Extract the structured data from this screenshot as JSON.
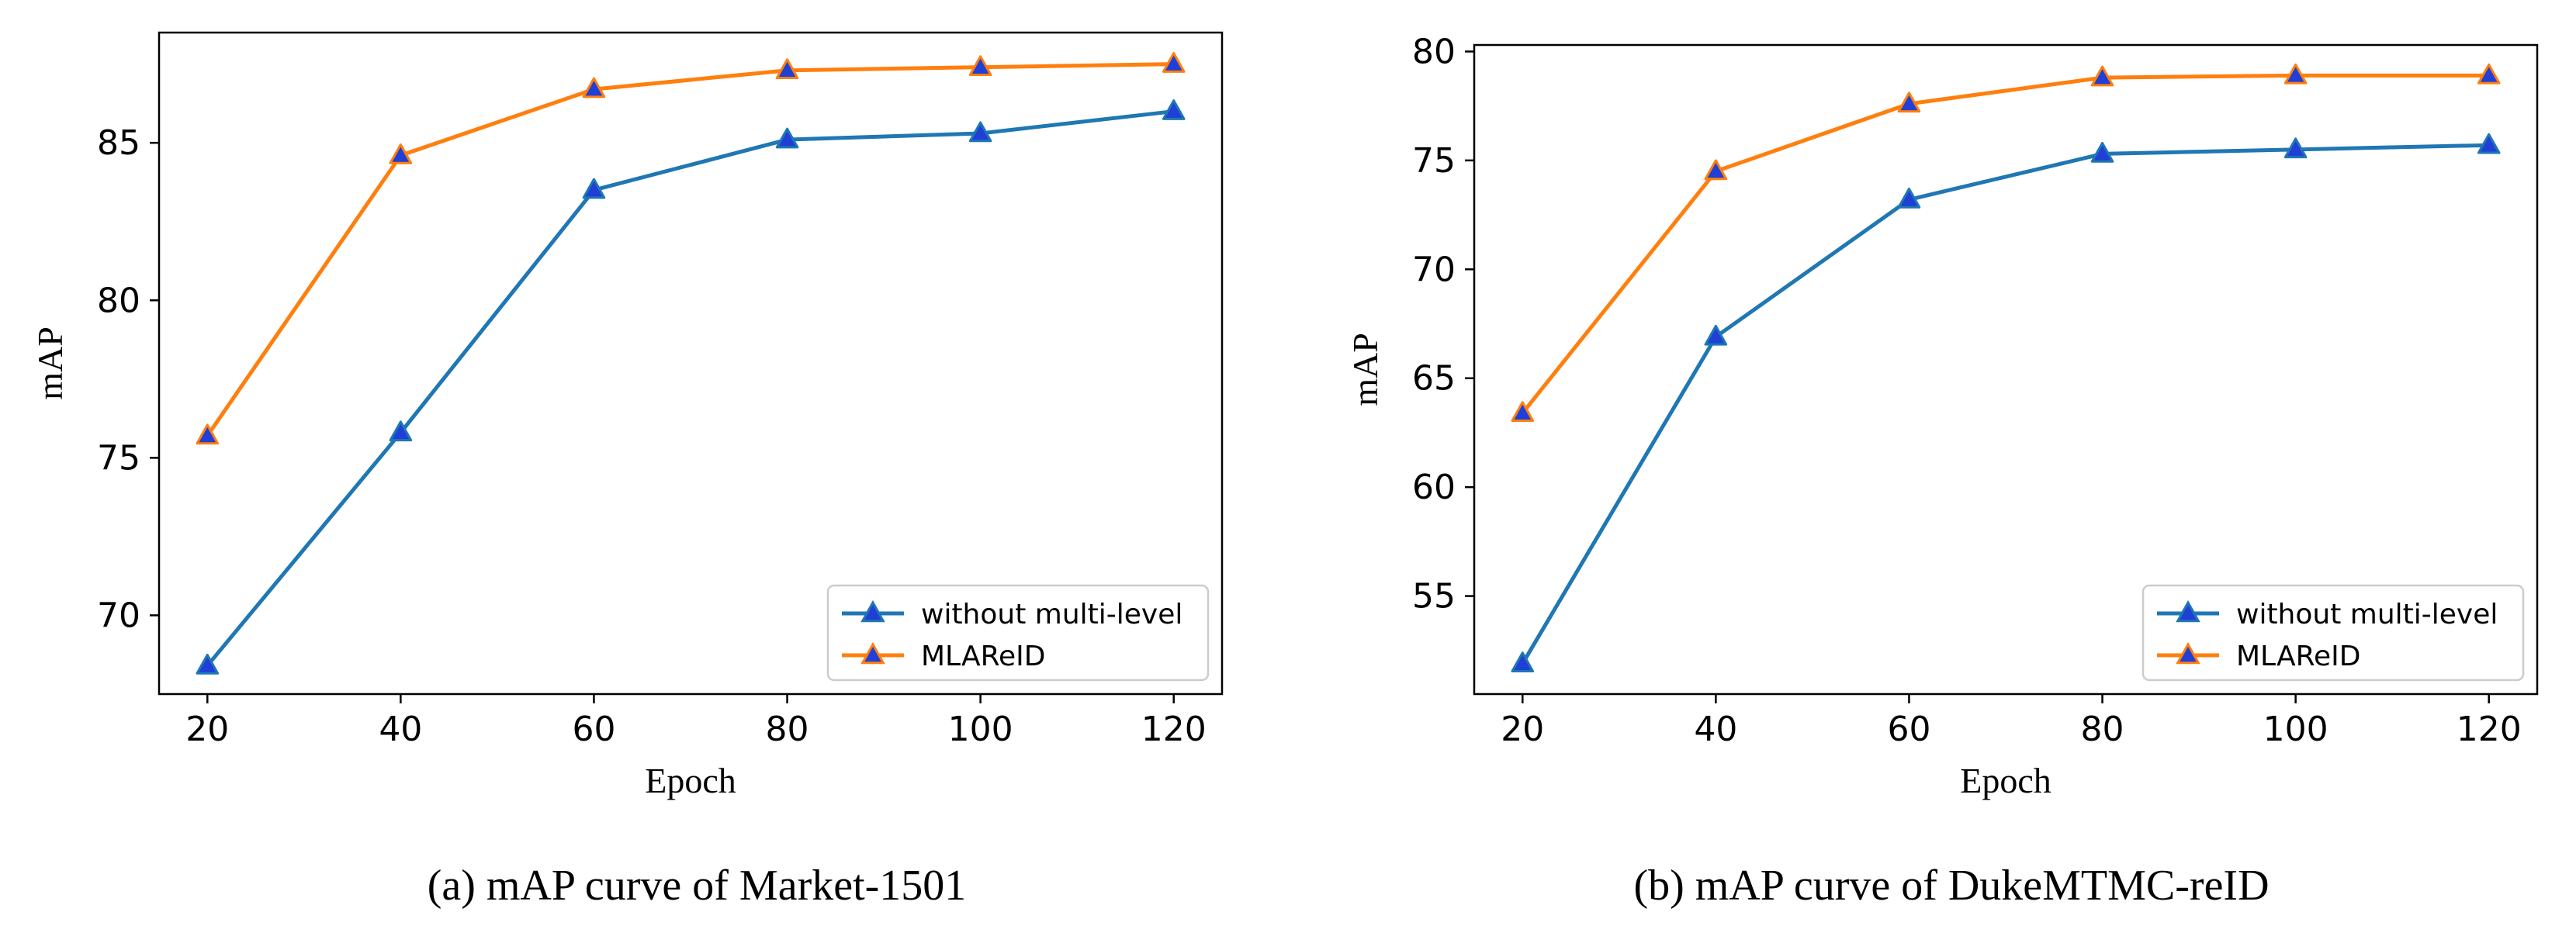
{
  "chart_data": [
    {
      "type": "line",
      "xlabel": "Epoch",
      "ylabel": "mAP",
      "caption": "(a) mAP curve of Market-1501",
      "x": [
        20,
        40,
        60,
        80,
        100,
        120
      ],
      "xticks": [
        "20",
        "40",
        "60",
        "80",
        "100",
        "120"
      ],
      "yticks": [
        70,
        75,
        80,
        85
      ],
      "xlim": [
        15,
        125
      ],
      "ylim": [
        67.5,
        88.5
      ],
      "grid": false,
      "legend_position": "lower-right",
      "series": [
        {
          "name": "without multi-level",
          "color": "#1f77b4",
          "marker_color": "#1f3fd6",
          "values": [
            68.4,
            75.8,
            83.5,
            85.1,
            85.3,
            86.0
          ]
        },
        {
          "name": "MLAReID",
          "color": "#ff7f0e",
          "marker_color": "#1f3fd6",
          "values": [
            75.7,
            84.6,
            86.7,
            87.3,
            87.4,
            87.5
          ]
        }
      ]
    },
    {
      "type": "line",
      "xlabel": "Epoch",
      "ylabel": "mAP",
      "caption": "(b) mAP curve of DukeMTMC-reID",
      "x": [
        20,
        40,
        60,
        80,
        100,
        120
      ],
      "xticks": [
        "20",
        "40",
        "60",
        "80",
        "100",
        "120"
      ],
      "yticks": [
        55,
        60,
        65,
        70,
        75,
        80
      ],
      "xlim": [
        15,
        125
      ],
      "ylim": [
        50.5,
        80.3
      ],
      "grid": false,
      "legend_position": "lower-right",
      "series": [
        {
          "name": "without multi-level",
          "color": "#1f77b4",
          "marker_color": "#1f3fd6",
          "values": [
            51.9,
            66.9,
            73.2,
            75.3,
            75.5,
            75.7
          ]
        },
        {
          "name": "MLAReID",
          "color": "#ff7f0e",
          "marker_color": "#1f3fd6",
          "values": [
            63.4,
            74.5,
            77.6,
            78.8,
            78.9,
            78.9
          ]
        }
      ]
    }
  ]
}
